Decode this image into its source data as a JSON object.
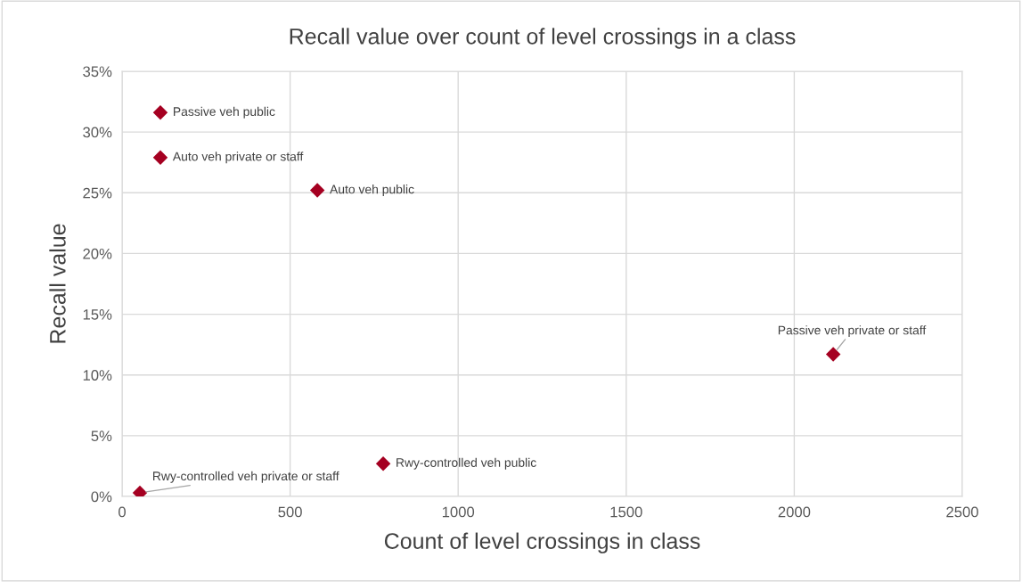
{
  "chart_data": {
    "type": "scatter",
    "title": "Recall value over count of level crossings in a class",
    "xlabel": "Count of level crossings in class",
    "ylabel": "Recall value",
    "series": [
      {
        "color": "#a50021",
        "x": [
          114,
          114,
          581,
          2116,
          777,
          53
        ],
        "values": [
          31.6,
          27.9,
          25.2,
          11.7,
          2.7,
          0.3
        ]
      }
    ],
    "annotations": [
      {
        "text": "Passive veh public",
        "x": 114,
        "y": 31.6
      },
      {
        "text": "Auto veh private or staff",
        "x": 114,
        "y": 27.9
      },
      {
        "text": "Auto veh public",
        "x": 581,
        "y": 25.2
      },
      {
        "text": "Passive veh private or staff",
        "x": 2116,
        "y": 11.7
      },
      {
        "text": "Rwy-controlled veh public",
        "x": 777,
        "y": 2.7
      },
      {
        "text": "Rwy-controlled veh private or staff",
        "x": 53,
        "y": 0.3
      }
    ],
    "xlim": [
      0,
      2500
    ],
    "xticks": [
      0,
      500,
      1000,
      1500,
      2000,
      2500
    ],
    "ylim": [
      0,
      35
    ],
    "yticks": [
      {
        "value": 0,
        "label": "0%"
      },
      {
        "value": 5,
        "label": "5%"
      },
      {
        "value": 10,
        "label": "10%"
      },
      {
        "value": 15,
        "label": "15%"
      },
      {
        "value": 20,
        "label": "20%"
      },
      {
        "value": 25,
        "label": "25%"
      },
      {
        "value": 30,
        "label": "30%"
      },
      {
        "value": 35,
        "label": "35%"
      }
    ],
    "grid": true,
    "marker": "diamond",
    "legend": false
  }
}
